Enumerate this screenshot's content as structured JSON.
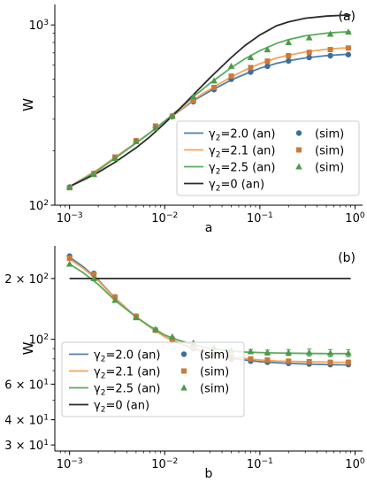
{
  "chart_data": [
    {
      "type": "line",
      "panel_label": "(a)",
      "xlabel": "a",
      "ylabel": "W",
      "xscale": "log",
      "yscale": "log",
      "xlim": [
        0.0007,
        1.2
      ],
      "ylim": [
        100,
        1300
      ],
      "grid": false,
      "legend_placement": "bottom-right",
      "x_ticks": [
        {
          "value": 0.001,
          "label_base": "10",
          "label_exp": "−3"
        },
        {
          "value": 0.01,
          "label_base": "10",
          "label_exp": "−2"
        },
        {
          "value": 0.1,
          "label_base": "10",
          "label_exp": "−1"
        },
        {
          "value": 1,
          "label_base": "10",
          "label_exp": "0"
        }
      ],
      "y_ticks": [
        {
          "value": 100,
          "label_base": "10",
          "label_exp": "2"
        },
        {
          "value": 1000,
          "label_base": "10",
          "label_exp": "3"
        }
      ],
      "series": [
        {
          "legend": "γ₂=2.0 (an)",
          "legend_sym": "γ",
          "legend_sub": "2",
          "legend_rest": "=2.0 (an)",
          "kind": "line",
          "color": "#4a7fb3",
          "x": [
            0.001,
            0.0014,
            0.002,
            0.003,
            0.005,
            0.007,
            0.01,
            0.014,
            0.02,
            0.03,
            0.05,
            0.07,
            0.1,
            0.15,
            0.2,
            0.3,
            0.5,
            0.7,
            0.9
          ],
          "y": [
            127,
            141,
            158,
            184,
            222,
            252,
            292,
            331,
            380,
            430,
            495,
            534,
            575,
            612,
            633,
            656,
            676,
            684,
            688
          ]
        },
        {
          "legend": "γ₂=2.1 (an)",
          "legend_sym": "γ",
          "legend_sub": "2",
          "legend_rest": "=2.1 (an)",
          "kind": "line",
          "color": "#f5a356",
          "x": [
            0.001,
            0.0014,
            0.002,
            0.003,
            0.005,
            0.007,
            0.01,
            0.014,
            0.02,
            0.03,
            0.05,
            0.07,
            0.1,
            0.15,
            0.2,
            0.3,
            0.5,
            0.7,
            0.9
          ],
          "y": [
            127,
            141,
            158,
            184,
            222,
            252,
            292,
            333,
            385,
            440,
            515,
            562,
            610,
            655,
            680,
            708,
            733,
            743,
            748
          ]
        },
        {
          "legend": "γ₂=2.5 (an)",
          "legend_sym": "γ",
          "legend_sub": "2",
          "legend_rest": "=2.5 (an)",
          "kind": "line",
          "color": "#5aab5a",
          "x": [
            0.001,
            0.0014,
            0.002,
            0.003,
            0.005,
            0.007,
            0.01,
            0.014,
            0.02,
            0.03,
            0.05,
            0.07,
            0.1,
            0.15,
            0.2,
            0.3,
            0.5,
            0.7,
            0.9
          ],
          "y": [
            126,
            140,
            156,
            182,
            221,
            252,
            293,
            340,
            400,
            475,
            580,
            650,
            720,
            790,
            830,
            870,
            900,
            912,
            918
          ]
        },
        {
          "legend": "γ₂=0 (an)",
          "legend_sym": "γ",
          "legend_sub": "2",
          "legend_rest": "=0 (an)",
          "kind": "line",
          "color": "#2b2b2b",
          "x": [
            0.001,
            0.0014,
            0.002,
            0.003,
            0.005,
            0.007,
            0.01,
            0.014,
            0.02,
            0.03,
            0.05,
            0.07,
            0.1,
            0.15,
            0.2,
            0.3,
            0.5,
            0.7,
            0.9
          ],
          "y": [
            127,
            138,
            152,
            173,
            208,
            240,
            285,
            338,
            410,
            510,
            660,
            770,
            880,
            990,
            1040,
            1090,
            1120,
            1130,
            1135
          ]
        },
        {
          "legend": "(sim)",
          "kind": "marker",
          "marker": "circle",
          "color": "#3d6f9e",
          "x": [
            0.001,
            0.0018,
            0.003,
            0.005,
            0.008,
            0.012,
            0.02,
            0.033,
            0.05,
            0.08,
            0.12,
            0.2,
            0.33,
            0.55,
            0.85
          ],
          "y": [
            126,
            150,
            184,
            227,
            270,
            310,
            375,
            438,
            500,
            548,
            590,
            632,
            660,
            675,
            685
          ]
        },
        {
          "legend": "(sim)",
          "kind": "marker",
          "marker": "square",
          "color": "#c97a3c",
          "x": [
            0.001,
            0.0018,
            0.003,
            0.005,
            0.008,
            0.012,
            0.02,
            0.033,
            0.05,
            0.08,
            0.12,
            0.2,
            0.33,
            0.55,
            0.85
          ],
          "y": [
            125,
            150,
            185,
            228,
            275,
            312,
            380,
            450,
            520,
            580,
            630,
            675,
            705,
            730,
            745
          ]
        },
        {
          "legend": "(sim)",
          "kind": "marker",
          "marker": "triangle",
          "color": "#4c9a4c",
          "x": [
            0.001,
            0.0018,
            0.003,
            0.005,
            0.008,
            0.012,
            0.02,
            0.033,
            0.05,
            0.08,
            0.12,
            0.2,
            0.33,
            0.55,
            0.85
          ],
          "y": [
            126,
            148,
            182,
            226,
            268,
            312,
            400,
            490,
            590,
            660,
            730,
            800,
            850,
            890,
            915
          ]
        }
      ]
    },
    {
      "type": "line",
      "panel_label": "(b)",
      "xlabel": "b",
      "ylabel": "W",
      "xscale": "log",
      "yscale": "log",
      "xlim": [
        0.0007,
        1.2
      ],
      "ylim": [
        28,
        290
      ],
      "grid": false,
      "legend_placement": "bottom-left",
      "x_ticks": [
        {
          "value": 0.001,
          "label_base": "10",
          "label_exp": "−3"
        },
        {
          "value": 0.01,
          "label_base": "10",
          "label_exp": "−2"
        },
        {
          "value": 0.1,
          "label_base": "10",
          "label_exp": "−1"
        },
        {
          "value": 1,
          "label_base": "10",
          "label_exp": "0"
        }
      ],
      "y_ticks": [
        {
          "value": 30,
          "label_base": "3 × 10",
          "label_exp": "1"
        },
        {
          "value": 40,
          "label_base": "4 × 10",
          "label_exp": "1"
        },
        {
          "value": 60,
          "label_base": "6 × 10",
          "label_exp": "1"
        },
        {
          "value": 100,
          "label_base": "10",
          "label_exp": "2"
        },
        {
          "value": 200,
          "label_base": "2 × 10",
          "label_exp": "2"
        }
      ],
      "series": [
        {
          "legend": "γ₂=2.0 (an)",
          "legend_sym": "γ",
          "legend_sub": "2",
          "legend_rest": "=2.0 (an)",
          "kind": "line",
          "color": "#4a7fb3",
          "x": [
            0.001,
            0.0014,
            0.002,
            0.003,
            0.005,
            0.007,
            0.01,
            0.014,
            0.02,
            0.03,
            0.05,
            0.07,
            0.1,
            0.15,
            0.2,
            0.3,
            0.5,
            0.7,
            0.9
          ],
          "y": [
            255,
            228,
            197,
            160,
            129,
            115,
            103,
            96,
            90,
            85,
            81,
            79,
            77.5,
            76.5,
            76,
            75.5,
            75,
            74.8,
            74.7
          ]
        },
        {
          "legend": "γ₂=2.1 (an)",
          "legend_sym": "γ",
          "legend_sub": "2",
          "legend_rest": "=2.1 (an)",
          "kind": "line",
          "color": "#f5a356",
          "x": [
            0.001,
            0.0014,
            0.002,
            0.003,
            0.005,
            0.007,
            0.01,
            0.014,
            0.02,
            0.03,
            0.05,
            0.07,
            0.1,
            0.15,
            0.2,
            0.3,
            0.5,
            0.7,
            0.9
          ],
          "y": [
            250,
            224,
            195,
            159,
            129,
            115,
            103,
            96.5,
            91,
            86,
            82,
            80.3,
            79,
            78,
            77.8,
            77.5,
            77.2,
            77,
            77
          ]
        },
        {
          "legend": "γ₂=2.5 (an)",
          "legend_sym": "γ",
          "legend_sub": "2",
          "legend_rest": "=2.5 (an)",
          "kind": "line",
          "color": "#5aab5a",
          "x": [
            0.001,
            0.0014,
            0.002,
            0.003,
            0.005,
            0.007,
            0.01,
            0.014,
            0.02,
            0.03,
            0.05,
            0.07,
            0.1,
            0.15,
            0.2,
            0.3,
            0.5,
            0.7,
            0.9
          ],
          "y": [
            236,
            213,
            187,
            156,
            129,
            116,
            105,
            99,
            94,
            90,
            87.5,
            86.5,
            86,
            85.6,
            85.4,
            85.2,
            85,
            85,
            85
          ]
        },
        {
          "legend": "γ₂=0 (an)",
          "legend_sym": "γ",
          "legend_sub": "2",
          "legend_rest": "=0 (an)",
          "kind": "line",
          "color": "#2b2b2b",
          "x": [
            0.001,
            0.9
          ],
          "y": [
            200,
            200
          ]
        },
        {
          "legend": "(sim)",
          "kind": "marker",
          "marker": "circle",
          "color": "#3d6f9e",
          "x": [
            0.001,
            0.0018,
            0.003,
            0.005,
            0.008,
            0.012,
            0.02,
            0.033,
            0.05,
            0.08,
            0.12,
            0.2,
            0.33,
            0.55,
            0.85
          ],
          "y": [
            258,
            212,
            162,
            130,
            111,
            100,
            90,
            84,
            80,
            78,
            77,
            76,
            75.5,
            75,
            75
          ]
        },
        {
          "legend": "(sim)",
          "kind": "marker",
          "marker": "square",
          "color": "#c97a3c",
          "x": [
            0.001,
            0.0018,
            0.003,
            0.005,
            0.008,
            0.012,
            0.02,
            0.033,
            0.05,
            0.08,
            0.12,
            0.2,
            0.33,
            0.55,
            0.85
          ],
          "y": [
            252,
            210,
            162,
            130,
            111,
            100,
            91,
            85,
            82,
            80,
            79,
            78,
            77.5,
            77,
            77
          ]
        },
        {
          "legend": "(sim)",
          "kind": "marker",
          "marker": "triangle",
          "color": "#4c9a4c",
          "x": [
            0.001,
            0.0018,
            0.003,
            0.005,
            0.008,
            0.012,
            0.02,
            0.033,
            0.05,
            0.08,
            0.12,
            0.2,
            0.33,
            0.55,
            0.85
          ],
          "y": [
            236,
            200,
            156,
            128,
            112,
            103,
            96,
            91,
            88,
            87,
            86,
            86,
            86,
            85.5,
            85.5
          ],
          "yerr": [
            0,
            0,
            0,
            0,
            0,
            0,
            0,
            0,
            1.5,
            2,
            2.5,
            3,
            3.5,
            3.5,
            3.5
          ]
        }
      ]
    }
  ]
}
